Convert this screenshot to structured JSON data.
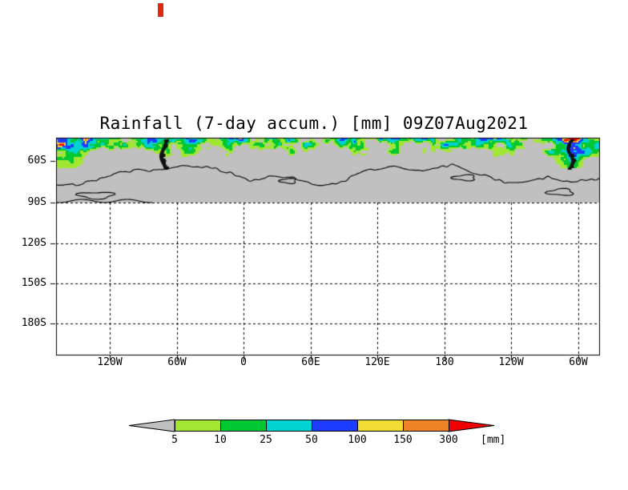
{
  "title": {
    "text": "Rainfall (7-day accum.) [mm] 09Z07Aug2021"
  },
  "map": {
    "y_ticks": [
      "60S",
      "90S",
      "120S",
      "150S",
      "180S"
    ],
    "x_ticks": [
      "120W",
      "60W",
      "0",
      "60E",
      "120E",
      "180",
      "120W",
      "60W"
    ]
  },
  "colorbar": {
    "tick_labels": [
      "5",
      "10",
      "25",
      "50",
      "100",
      "150",
      "300"
    ],
    "unit_label": "[mm]"
  },
  "artifact": {
    "color": "#e02810"
  },
  "chart_data": {
    "type": "heatmap",
    "title": "Rainfall (7-day accum.) [mm] 09Z07Aug2021",
    "variable": "Rainfall, 7-day accumulation",
    "unit": "mm",
    "valid_time": "09Z07Aug2021",
    "projection": "lat-lon band, Southern Hemisphere / Antarctic sector",
    "x_axis": {
      "ticks": [
        "120W",
        "60W",
        "0",
        "60E",
        "120E",
        "180",
        "120W",
        "60W"
      ],
      "gridlines": "dashed"
    },
    "y_axis": {
      "ticks": [
        "60S",
        "90S",
        "120S",
        "150S",
        "180S"
      ],
      "gridlines": "dashed"
    },
    "contour_levels_mm": [
      5,
      10,
      25,
      50,
      100,
      150,
      300
    ],
    "palette": [
      {
        "range": "<5",
        "color": "#c0c0c0"
      },
      {
        "range": "5-10",
        "color": "#a0e632"
      },
      {
        "range": "10-25",
        "color": "#00c832"
      },
      {
        "range": "25-50",
        "color": "#00d2d2"
      },
      {
        "range": "50-100",
        "color": "#1e3cff"
      },
      {
        "range": "100-150",
        "color": "#f0dc32"
      },
      {
        "range": "150-300",
        "color": "#f08228"
      },
      {
        "range": ">300",
        "color": "#f00000"
      }
    ],
    "legend_position": "bottom horizontal colorbar with under/over arrows",
    "summary": "Mottled circumpolar band of 5-100+ mm rainfall (green/cyan/blue with isolated orange-red maxima) along the storm track near the top of the panel (~55-65S); solid gray <5 mm belt with black Antarctic coastline contours extending to the 90S gridline; blank (white) south of 90S with dashed lat/lon gridlines."
  }
}
